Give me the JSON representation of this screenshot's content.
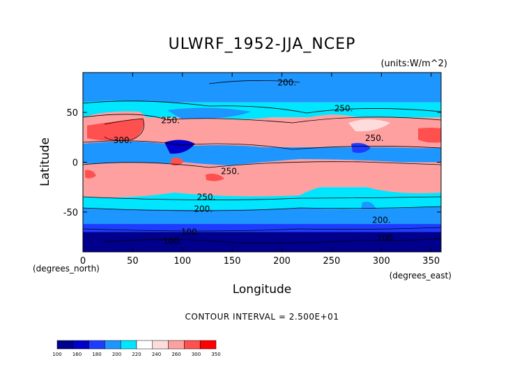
{
  "chart_data": {
    "type": "heatmap",
    "title": "ULWRF_1952-JJA_NCEP",
    "units": "(units:W/m^2)",
    "xlabel": "Longitude",
    "ylabel": "Latitude",
    "x_sublabel": "(degrees_east)",
    "y_sublabel": "(degrees_north)",
    "xlim": [
      0,
      360
    ],
    "ylim": [
      -90,
      90
    ],
    "x_ticks": [
      {
        "value": 0,
        "label": "0"
      },
      {
        "value": 50,
        "label": "50"
      },
      {
        "value": 100,
        "label": "100"
      },
      {
        "value": 150,
        "label": "150"
      },
      {
        "value": 200,
        "label": "200"
      },
      {
        "value": 250,
        "label": "250"
      },
      {
        "value": 300,
        "label": "300"
      },
      {
        "value": 350,
        "label": "350"
      }
    ],
    "y_ticks": [
      {
        "value": 50,
        "label": "50"
      },
      {
        "value": 0,
        "label": "0"
      },
      {
        "value": -50,
        "label": "-50"
      }
    ],
    "contour_interval": "CONTOUR INTERVAL = 2.500E+01",
    "contour_labels": [
      {
        "text": "200.",
        "lon": 205,
        "lat": 80
      },
      {
        "text": "250.",
        "lon": 262,
        "lat": 54
      },
      {
        "text": "250.",
        "lon": 88,
        "lat": 42
      },
      {
        "text": "300.",
        "lon": 40,
        "lat": 22
      },
      {
        "text": "250.",
        "lon": 293,
        "lat": 24
      },
      {
        "text": "250.",
        "lon": 148,
        "lat": -9
      },
      {
        "text": "250.",
        "lon": 124,
        "lat": -35
      },
      {
        "text": "200.",
        "lon": 121,
        "lat": -47
      },
      {
        "text": "200.",
        "lon": 300,
        "lat": -58
      },
      {
        "text": "100.",
        "lon": 108,
        "lat": -70
      },
      {
        "text": "100.",
        "lon": 90,
        "lat": -79
      },
      {
        "text": "100.",
        "lon": 305,
        "lat": -76
      }
    ],
    "colorbar": {
      "labels": [
        "100",
        "160",
        "180",
        "200",
        "220",
        "240",
        "260",
        "300",
        "350"
      ],
      "colors": [
        "#00008c",
        "#0000c8",
        "#1e3cff",
        "#1e96ff",
        "#00e6ff",
        "#ffffff",
        "#ffdcdc",
        "#ffa0a0",
        "#ff5050",
        "#ff0000"
      ]
    },
    "zonal_bands": [
      {
        "lat_from": 90,
        "lat_to": 60,
        "value": 210
      },
      {
        "lat_from": 60,
        "lat_to": 45,
        "value": 235
      },
      {
        "lat_from": 45,
        "lat_to": 15,
        "value": 270
      },
      {
        "lat_from": 15,
        "lat_to": 0,
        "value": 215
      },
      {
        "lat_from": 0,
        "lat_to": -25,
        "value": 265
      },
      {
        "lat_from": -25,
        "lat_to": -45,
        "value": 235
      },
      {
        "lat_from": -45,
        "lat_to": -62,
        "value": 210
      },
      {
        "lat_from": -62,
        "lat_to": -70,
        "value": 180
      },
      {
        "lat_from": -70,
        "lat_to": -90,
        "value": 130
      }
    ]
  }
}
